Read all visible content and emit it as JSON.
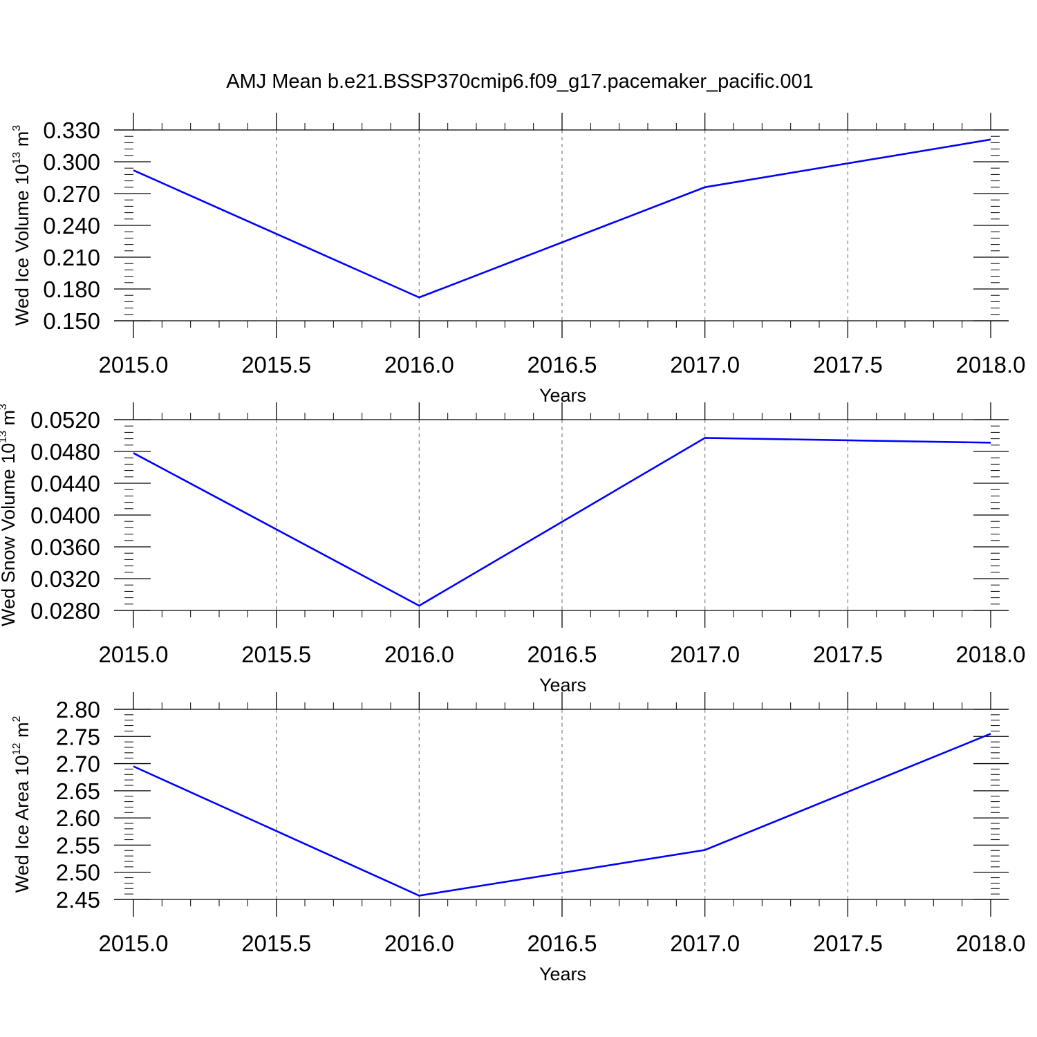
{
  "title": "AMJ Mean b.e21.BSSP370cmip6.f09_g17.pacemaker_pacific.001",
  "colors": {
    "series": "#0000ff",
    "axis": "#000000",
    "grid": "#808080"
  },
  "chart_data": [
    {
      "type": "line",
      "ylabel": {
        "text": "Wed Ice Volume 10",
        "exp": "13",
        "unit": " m",
        "unit_exp": "3"
      },
      "xlabel": "Years",
      "x": [
        2015,
        2016,
        2017,
        2018
      ],
      "series": [
        {
          "values": [
            0.292,
            0.172,
            0.276,
            0.321
          ]
        }
      ],
      "xlim": [
        2015.0,
        2018.0
      ],
      "ylim": [
        0.15,
        0.33
      ],
      "xticks": [
        2015.0,
        2015.5,
        2016.0,
        2016.5,
        2017.0,
        2017.5,
        2018.0
      ],
      "xtick_labels": [
        "2015.0",
        "2015.5",
        "2016.0",
        "2016.5",
        "2017.0",
        "2017.5",
        "2018.0"
      ],
      "yticks": [
        0.15,
        0.18,
        0.21,
        0.24,
        0.27,
        0.3,
        0.33
      ],
      "ytick_labels": [
        "0.150",
        "0.180",
        "0.210",
        "0.240",
        "0.270",
        "0.300",
        "0.330"
      ],
      "x_minor_step": 0.1,
      "y_minor_step": 0.006,
      "grid": "vertical-dashed"
    },
    {
      "type": "line",
      "ylabel": {
        "text": "Wed Snow Volume 10",
        "exp": "13",
        "unit": " m",
        "unit_exp": "3"
      },
      "xlabel": "Years",
      "x": [
        2015,
        2016,
        2017,
        2018
      ],
      "series": [
        {
          "values": [
            0.0478,
            0.0286,
            0.0497,
            0.0491
          ]
        }
      ],
      "xlim": [
        2015.0,
        2018.0
      ],
      "ylim": [
        0.028,
        0.052
      ],
      "xticks": [
        2015.0,
        2015.5,
        2016.0,
        2016.5,
        2017.0,
        2017.5,
        2018.0
      ],
      "xtick_labels": [
        "2015.0",
        "2015.5",
        "2016.0",
        "2016.5",
        "2017.0",
        "2017.5",
        "2018.0"
      ],
      "yticks": [
        0.028,
        0.032,
        0.036,
        0.04,
        0.044,
        0.048,
        0.052
      ],
      "ytick_labels": [
        "0.0280",
        "0.0320",
        "0.0360",
        "0.0400",
        "0.0440",
        "0.0480",
        "0.0520"
      ],
      "x_minor_step": 0.1,
      "y_minor_step": 0.0008,
      "grid": "vertical-dashed"
    },
    {
      "type": "line",
      "ylabel": {
        "text": "Wed Ice Area 10",
        "exp": "12",
        "unit": " m",
        "unit_exp": "2"
      },
      "xlabel": "Years",
      "x": [
        2015,
        2016,
        2017,
        2018
      ],
      "series": [
        {
          "values": [
            2.695,
            2.457,
            2.541,
            2.755
          ]
        }
      ],
      "xlim": [
        2015.0,
        2018.0
      ],
      "ylim": [
        2.45,
        2.8
      ],
      "xticks": [
        2015.0,
        2015.5,
        2016.0,
        2016.5,
        2017.0,
        2017.5,
        2018.0
      ],
      "xtick_labels": [
        "2015.0",
        "2015.5",
        "2016.0",
        "2016.5",
        "2017.0",
        "2017.5",
        "2018.0"
      ],
      "yticks": [
        2.45,
        2.5,
        2.55,
        2.6,
        2.65,
        2.7,
        2.75,
        2.8
      ],
      "ytick_labels": [
        "2.45",
        "2.50",
        "2.55",
        "2.60",
        "2.65",
        "2.70",
        "2.75",
        "2.80"
      ],
      "x_minor_step": 0.1,
      "y_minor_step": 0.01,
      "grid": "vertical-dashed"
    }
  ]
}
